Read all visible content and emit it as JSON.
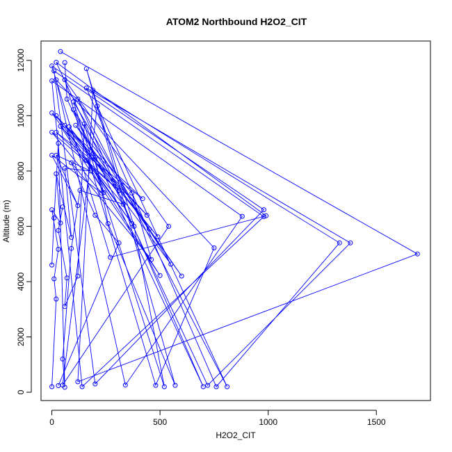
{
  "chart_data": {
    "type": "line",
    "title": "ATOM2 Northbound H2O2_CIT",
    "xlabel": "H2O2_CIT",
    "ylabel": "Altitude (m)",
    "xlim": [
      -50,
      1750
    ],
    "ylim": [
      -300,
      12700
    ],
    "xticks": [
      0,
      500,
      1000,
      1500
    ],
    "yticks": [
      0,
      2000,
      4000,
      6000,
      8000,
      10000,
      12000
    ],
    "grid": false,
    "colors": {
      "series": "#0000ff",
      "axes": "#000000"
    },
    "series": [
      {
        "points": [
          [
            40,
            12320
          ],
          [
            1690,
            5000
          ],
          [
            120,
            380
          ],
          [
            190,
            10920
          ],
          [
            1330,
            5400
          ],
          [
            760,
            200
          ],
          [
            160,
            11000
          ],
          [
            1380,
            5400
          ],
          [
            720,
            250
          ],
          [
            20,
            11930
          ],
          [
            990,
            6380
          ],
          [
            270,
            4880
          ],
          [
            0,
            11800
          ],
          [
            980,
            6600
          ],
          [
            200,
            300
          ],
          [
            10,
            11620
          ],
          [
            980,
            6350
          ],
          [
            140,
            200
          ],
          [
            0,
            11260
          ],
          [
            880,
            6360
          ],
          [
            340,
            260
          ],
          [
            20,
            11300
          ],
          [
            750,
            5220
          ],
          [
            480,
            250
          ],
          [
            60,
            11300
          ],
          [
            540,
            6000
          ],
          [
            50,
            260
          ],
          [
            210,
            10350
          ],
          [
            810,
            200
          ],
          [
            120,
            10600
          ],
          [
            700,
            200
          ],
          [
            100,
            10220
          ],
          [
            550,
            4630
          ],
          [
            80,
            9600
          ],
          [
            490,
            5620
          ],
          [
            60,
            9650
          ],
          [
            500,
            4220
          ],
          [
            40,
            9620
          ],
          [
            440,
            6400
          ],
          [
            20,
            10000
          ],
          [
            370,
            6100
          ],
          [
            0,
            10100
          ],
          [
            420,
            7000
          ],
          [
            20,
            9400
          ],
          [
            310,
            7300
          ],
          [
            0,
            9400
          ],
          [
            230,
            7200
          ],
          [
            0,
            8570
          ],
          [
            120,
            6750
          ],
          [
            20,
            8570
          ],
          [
            180,
            8000
          ],
          [
            60,
            8100
          ],
          [
            90,
            5600
          ],
          [
            20,
            7900
          ],
          [
            40,
            6120
          ],
          [
            0,
            6600
          ],
          [
            30,
            5170
          ],
          [
            10,
            4100
          ],
          [
            20,
            3370
          ],
          [
            0,
            200
          ]
        ]
      },
      {
        "points": [
          [
            60,
            11920
          ],
          [
            70,
            10600
          ],
          [
            200,
            8500
          ],
          [
            260,
            6100
          ],
          [
            570,
            250
          ],
          [
            160,
            11700
          ],
          [
            380,
            6000
          ],
          [
            520,
            200
          ],
          [
            100,
            10500
          ],
          [
            450,
            5900
          ],
          [
            600,
            4200
          ],
          [
            110,
            9650
          ],
          [
            370,
            7200
          ],
          [
            460,
            4800
          ],
          [
            90,
            8300
          ],
          [
            200,
            6400
          ],
          [
            310,
            5400
          ],
          [
            30,
            240
          ]
        ]
      },
      {
        "points": [
          [
            50,
            6700
          ],
          [
            30,
            5850
          ],
          [
            70,
            4130
          ],
          [
            60,
            3100
          ],
          [
            120,
            4200
          ],
          [
            150,
            9700
          ],
          [
            240,
            7220
          ],
          [
            160,
            8380
          ],
          [
            330,
            6800
          ],
          [
            130,
            7300
          ],
          [
            90,
            5200
          ],
          [
            50,
            1200
          ],
          [
            60,
            180
          ],
          [
            30,
            9000
          ],
          [
            10,
            6300
          ],
          [
            0,
            4600
          ]
        ]
      }
    ]
  }
}
